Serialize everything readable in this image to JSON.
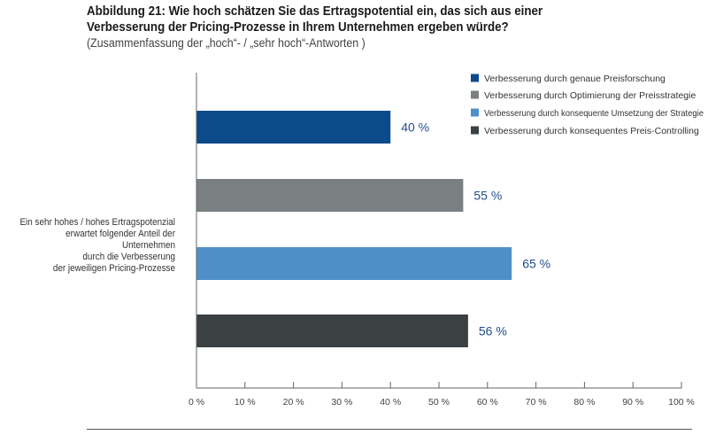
{
  "header": {
    "title_line1": "Abbildung 21: Wie hoch schätzen Sie das Ertragspotential ein, das sich aus einer",
    "title_line2": "Verbesserung der Pricing-Prozesse in Ihrem Unternehmen ergeben würde?",
    "subtitle": "(Zusammenfassung der „hoch“- / „sehr hoch“-Antworten )"
  },
  "side_label": {
    "lines": [
      "Ein sehr hohes / hohes Ertragspotenzial",
      "erwartet folgender Anteil der Unternehmen",
      "durch die Verbesserung",
      "der jeweiligen Pricing-Prozesse"
    ]
  },
  "chart_data": {
    "type": "bar",
    "orientation": "horizontal",
    "categories": [
      "Verbesserung durch genaue Preisforschung",
      "Verbesserung durch Optimierung der Preisstrategie",
      "Verbesserung durch konsequente Umsetzung der Strategie",
      "Verbesserung durch konsequentes Preis-Controlling"
    ],
    "values": [
      40,
      55,
      65,
      56
    ],
    "data_labels": [
      "40 %",
      "55 %",
      "65 %",
      "56 %"
    ],
    "colors": [
      "#0b4a8b",
      "#7a7f82",
      "#4f8fc8",
      "#3b4043"
    ],
    "label_color": "#1f4e8c",
    "xlim": [
      0,
      100
    ],
    "x_ticks": [
      0,
      10,
      20,
      30,
      40,
      50,
      60,
      70,
      80,
      90,
      100
    ],
    "x_tick_labels": [
      "0 %",
      "10 %",
      "20 %",
      "30 %",
      "40 %",
      "50 %",
      "60 %",
      "70 %",
      "80 %",
      "90 %",
      "100 %"
    ],
    "legend_position": "top-right",
    "grid": false
  }
}
